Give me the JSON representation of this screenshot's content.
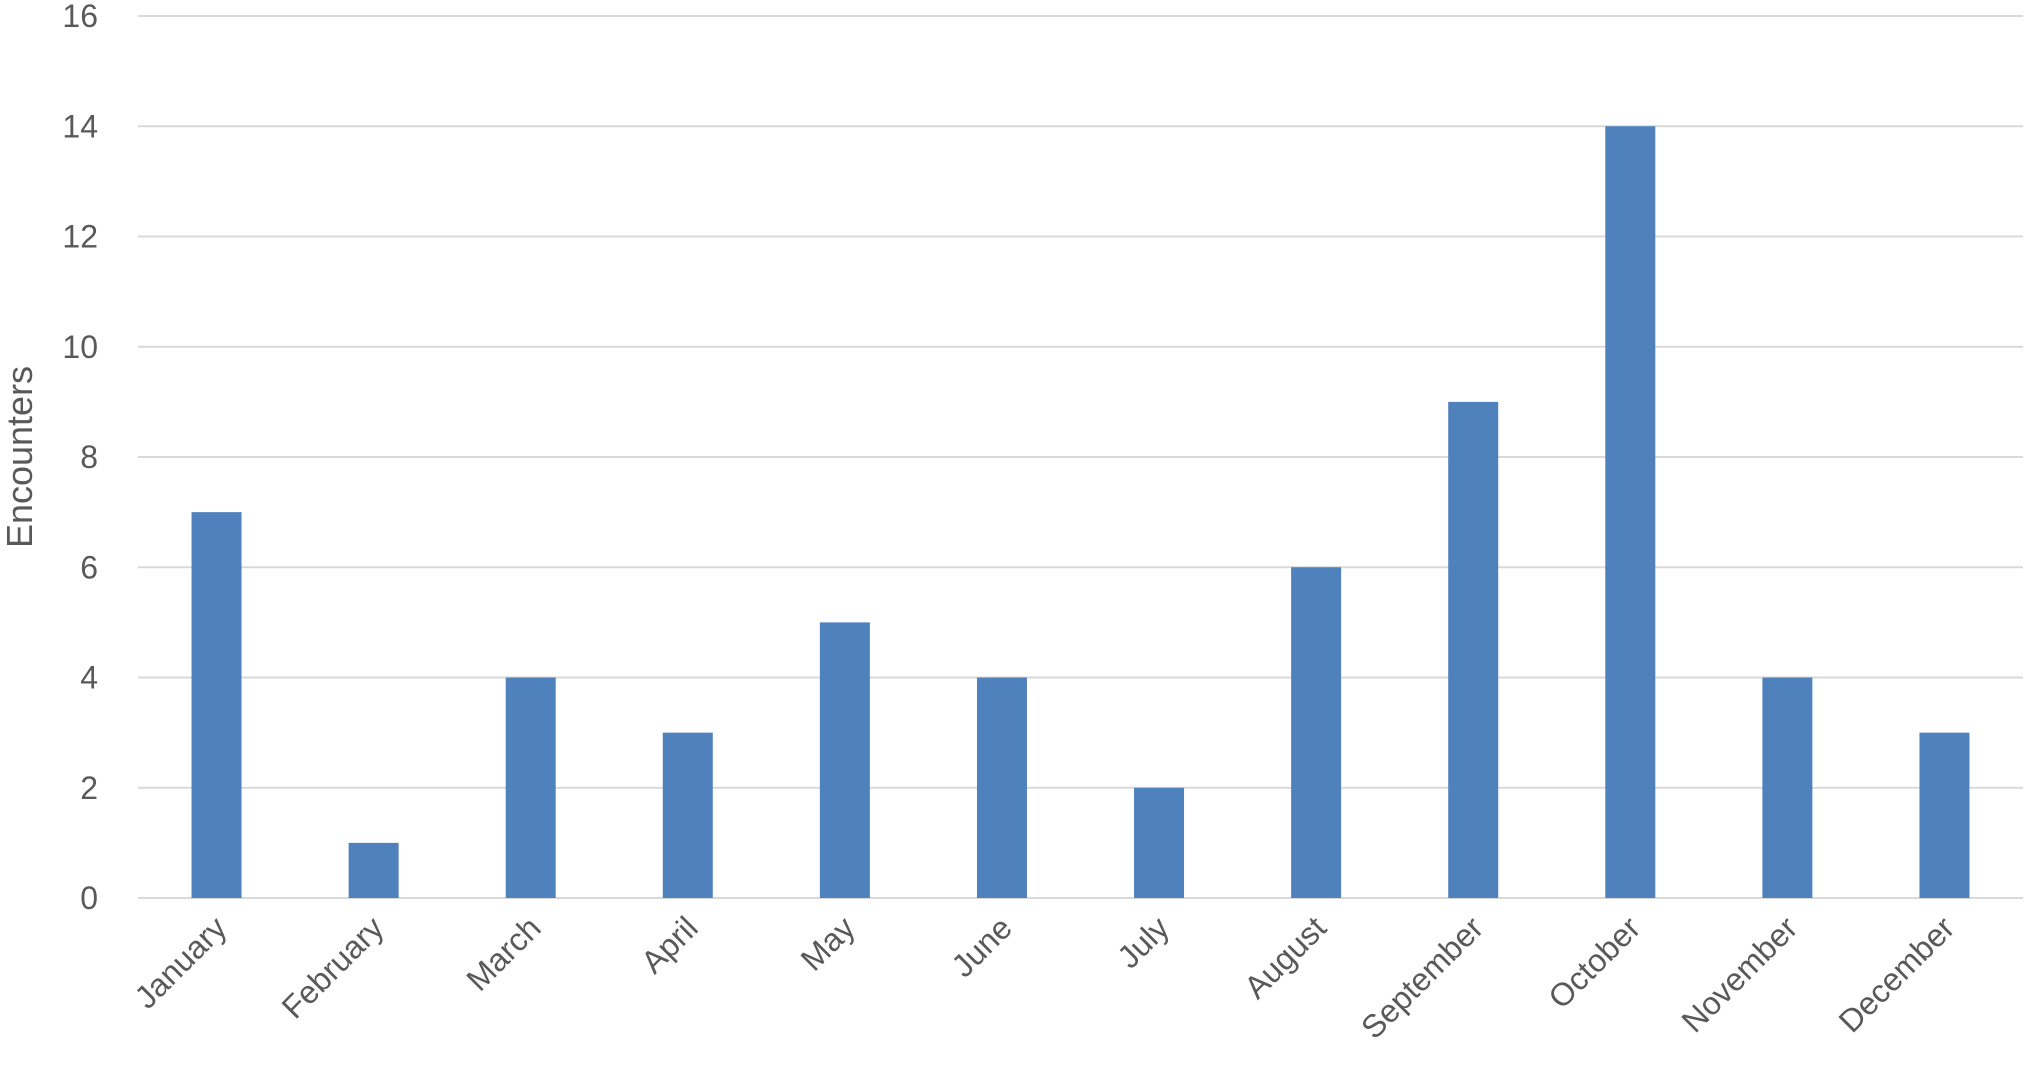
{
  "chart_data": {
    "type": "bar",
    "title": "",
    "xlabel": "",
    "ylabel": "Encounters",
    "ylim": [
      0,
      16
    ],
    "yticks": [
      0,
      2,
      4,
      6,
      8,
      10,
      12,
      14,
      16
    ],
    "grid": true,
    "legend": "none",
    "bar_color": "#4f81bd",
    "categories": [
      "January",
      "February",
      "March",
      "April",
      "May",
      "June",
      "July",
      "August",
      "September",
      "October",
      "November",
      "December"
    ],
    "values": [
      7,
      1,
      4,
      3,
      5,
      4,
      2,
      6,
      9,
      14,
      4,
      3
    ]
  }
}
